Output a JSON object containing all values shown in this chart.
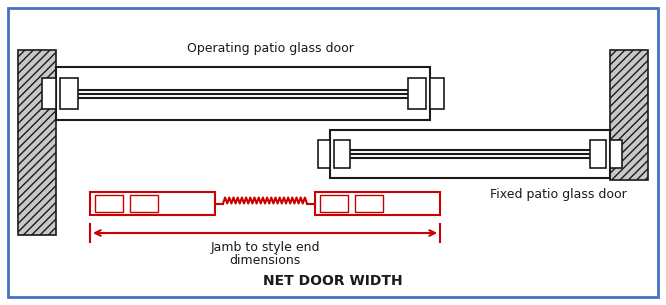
{
  "bg_color": "#ffffff",
  "border_color": "#4472c4",
  "title": "NET DOOR WIDTH",
  "label_op": "Operating patio glass door",
  "label_fixed": "Fixed patio glass door",
  "label_jamb1": "Jamb to style end",
  "label_jamb2": "dimensions",
  "black": "#1a1a1a",
  "red": "#cc0000",
  "hatch_gray": "#b0b0b0",
  "fig_w": 6.66,
  "fig_h": 3.05,
  "dpi": 100
}
